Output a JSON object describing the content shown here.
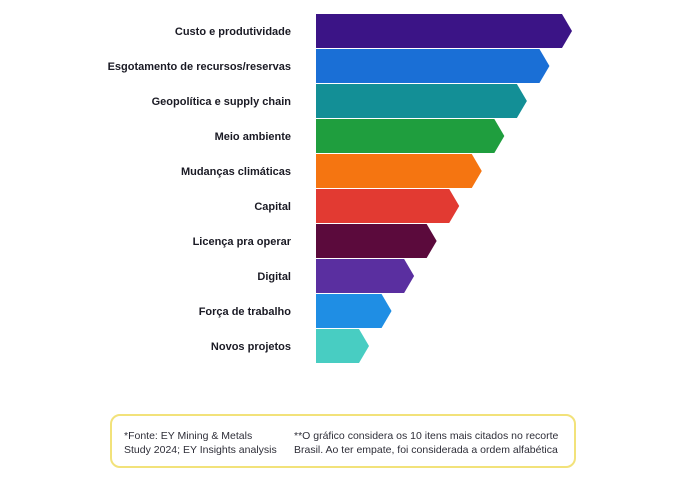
{
  "chart_data": {
    "type": "bar",
    "orientation": "horizontal",
    "title": "",
    "xlabel": "",
    "ylabel": "",
    "categories": [
      "Custo e produtividade",
      "Esgotamento de recursos/reservas",
      "Geopolítica e supply chain",
      "Meio ambiente",
      "Mudanças climáticas",
      "Capital",
      "Licença pra operar",
      "Digital",
      "Força de trabalho",
      "Novos projetos"
    ],
    "values": [
      10,
      9,
      8,
      7,
      6,
      5,
      4,
      3,
      2,
      1
    ],
    "colors": [
      "#3b1486",
      "#1a6fd6",
      "#138f96",
      "#1f9e3e",
      "#f57511",
      "#e23a32",
      "#5b0a3c",
      "#5a2fa0",
      "#1f8ee4",
      "#48cdc2"
    ],
    "axis_visible": false,
    "grid": false
  },
  "footnote": {
    "source": "*Fonte: EY Mining & Metals Study 2024; EY Insights analysis",
    "note": "**O gráfico considera os 10 itens mais citados no recorte Brasil. Ao ter empate, foi considerada a ordem alfabética"
  }
}
